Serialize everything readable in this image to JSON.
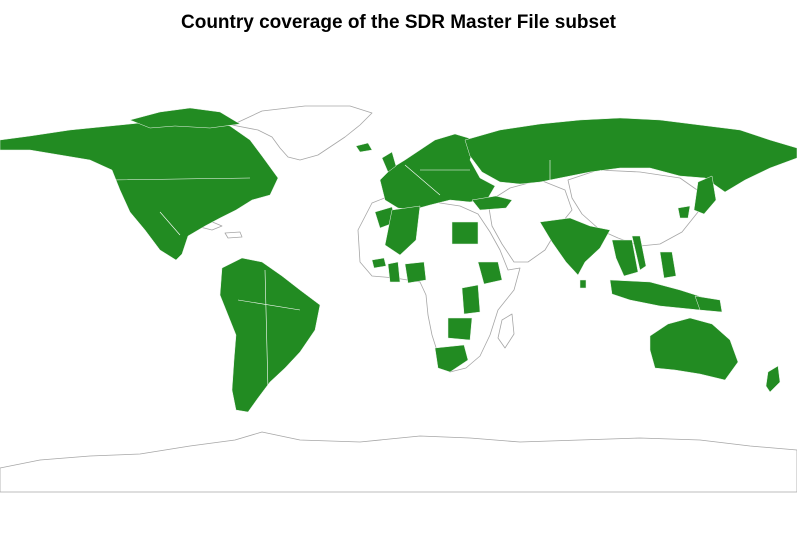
{
  "title": "Country coverage of the SDR Master File subset",
  "colors": {
    "covered": "#228b22",
    "not_covered": "#ffffff",
    "border": "#a6a6a6",
    "background": "#ffffff"
  },
  "map": {
    "projection": "equirectangular",
    "legend": "none"
  },
  "covered_countries": [
    "Canada",
    "United States",
    "Mexico",
    "Guatemala",
    "Honduras",
    "Nicaragua",
    "Costa Rica",
    "Panama",
    "Colombia",
    "Venezuela",
    "Guyana",
    "Suriname",
    "Ecuador",
    "Peru",
    "Brazil",
    "Bolivia",
    "Paraguay",
    "Chile",
    "Argentina",
    "Uruguay",
    "Iceland",
    "Norway",
    "Sweden",
    "Finland",
    "Ireland",
    "United Kingdom",
    "Denmark",
    "Netherlands",
    "Belgium",
    "France",
    "Spain",
    "Portugal",
    "Germany",
    "Poland",
    "Czech Republic",
    "Austria",
    "Switzerland",
    "Italy",
    "Slovakia",
    "Hungary",
    "Slovenia",
    "Croatia",
    "Romania",
    "Bulgaria",
    "Greece",
    "Estonia",
    "Latvia",
    "Lithuania",
    "Belarus",
    "Ukraine",
    "Moldova",
    "Russia",
    "Kazakhstan",
    "Turkey",
    "Israel",
    "Morocco",
    "Tunisia",
    "Egypt",
    "Senegal",
    "Ghana",
    "Nigeria",
    "Ethiopia",
    "Kenya",
    "Tanzania",
    "Zambia",
    "Zimbabwe",
    "South Africa",
    "Lesotho",
    "Pakistan",
    "India",
    "Sri Lanka",
    "Bangladesh",
    "Myanmar",
    "Thailand",
    "Vietnam",
    "Philippines",
    "Malaysia",
    "Indonesia",
    "Japan",
    "South Korea",
    "Taiwan",
    "Papua New Guinea",
    "Australia",
    "New Zealand"
  ]
}
